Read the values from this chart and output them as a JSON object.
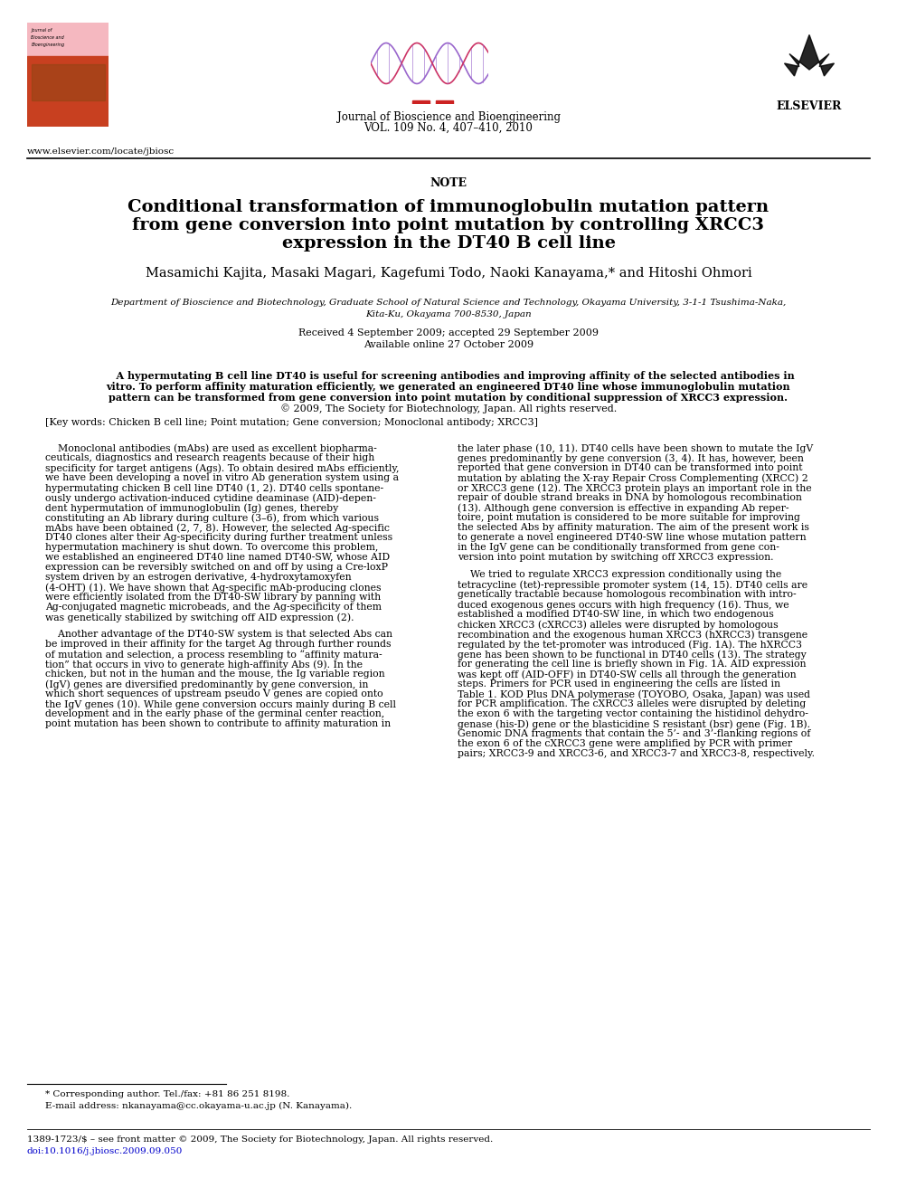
{
  "bg_color": "#ffffff",
  "journal_name": "Journal of Bioscience and Bioengineering",
  "journal_vol": "VOL. 109 No. 4, 407–410, 2010",
  "url": "www.elsevier.com/locate/jbiosc",
  "section_label": "NOTE",
  "title_line1": "Conditional transformation of immunoglobulin mutation pattern",
  "title_line2": "from gene conversion into point mutation by controlling XRCC3",
  "title_line3": "expression in the DT40 B cell line",
  "authors": "Masamichi Kajita, Masaki Magari, Kagefumi Todo, Naoki Kanayama,* and Hitoshi Ohmori",
  "affiliation_line1": "Department of Bioscience and Biotechnology, Graduate School of Natural Science and Technology, Okayama University, 3-1-1 Tsushima-Naka,",
  "affiliation_line2": "Kita-Ku, Okayama 700-8530, Japan",
  "received": "Received 4 September 2009; accepted 29 September 2009",
  "available": "Available online 27 October 2009",
  "abstract_bold": "    A hypermutating B cell line DT40 is useful for screening antibodies and improving affinity of the selected antibodies in\nvitro. To perform affinity maturation efficiently, we generated an engineered DT40 line whose immunoglobulin mutation\npattern can be transformed from gene conversion into point mutation by conditional suppression of XRCC3 expression.",
  "abstract_normal": "© 2009, The Society for Biotechnology, Japan. All rights reserved.",
  "keywords": "[Key words: Chicken B cell line; Point mutation; Gene conversion; Monoclonal antibody; XRCC3]",
  "col1_para1_lines": [
    "    Monoclonal antibodies (mAbs) are used as excellent biopharma-",
    "ceuticals, diagnostics and research reagents because of their high",
    "specificity for target antigens (Ags). To obtain desired mAbs efficiently,",
    "we have been developing a novel in vitro Ab generation system using a",
    "hypermutating chicken B cell line DT40 (1, 2). DT40 cells spontane-",
    "ously undergo activation-induced cytidine deaminase (AID)-depen-",
    "dent hypermutation of immunoglobulin (Ig) genes, thereby",
    "constituting an Ab library during culture (3–6), from which various",
    "mAbs have been obtained (2, 7, 8). However, the selected Ag-specific",
    "DT40 clones alter their Ag-specificity during further treatment unless",
    "hypermutation machinery is shut down. To overcome this problem,",
    "we established an engineered DT40 line named DT40-SW, whose AID",
    "expression can be reversibly switched on and off by using a Cre-loxP",
    "system driven by an estrogen derivative, 4-hydroxytamoxyfen",
    "(4-OHT) (1). We have shown that Ag-specific mAb-producing clones",
    "were efficiently isolated from the DT40-SW library by panning with",
    "Ag-conjugated magnetic microbeads, and the Ag-specificity of them",
    "was genetically stabilized by switching off AID expression (2)."
  ],
  "col1_para2_lines": [
    "    Another advantage of the DT40-SW system is that selected Abs can",
    "be improved in their affinity for the target Ag through further rounds",
    "of mutation and selection, a process resembling to “affinity matura-",
    "tion” that occurs in vivo to generate high-affinity Abs (9). In the",
    "chicken, but not in the human and the mouse, the Ig variable region",
    "(IgV) genes are diversified predominantly by gene conversion, in",
    "which short sequences of upstream pseudo V genes are copied onto",
    "the IgV genes (10). While gene conversion occurs mainly during B cell",
    "development and in the early phase of the germinal center reaction,",
    "point mutation has been shown to contribute to affinity maturation in"
  ],
  "col2_para1_lines": [
    "the later phase (10, 11). DT40 cells have been shown to mutate the IgV",
    "genes predominantly by gene conversion (3, 4). It has, however, been",
    "reported that gene conversion in DT40 can be transformed into point",
    "mutation by ablating the X-ray Repair Cross Complementing (XRCC) 2",
    "or XRCC3 gene (12). The XRCC3 protein plays an important role in the",
    "repair of double strand breaks in DNA by homologous recombination",
    "(13). Although gene conversion is effective in expanding Ab reper-",
    "toire, point mutation is considered to be more suitable for improving",
    "the selected Abs by affinity maturation. The aim of the present work is",
    "to generate a novel engineered DT40-SW line whose mutation pattern",
    "in the IgV gene can be conditionally transformed from gene con-",
    "version into point mutation by switching off XRCC3 expression."
  ],
  "col2_para2_lines": [
    "    We tried to regulate XRCC3 expression conditionally using the",
    "tetracycline (tet)-repressible promoter system (14, 15). DT40 cells are",
    "genetically tractable because homologous recombination with intro-",
    "duced exogenous genes occurs with high frequency (16). Thus, we",
    "established a modified DT40-SW line, in which two endogenous",
    "chicken XRCC3 (cXRCC3) alleles were disrupted by homologous",
    "recombination and the exogenous human XRCC3 (hXRCC3) transgene",
    "regulated by the tet-promoter was introduced (Fig. 1A). The hXRCC3",
    "gene has been shown to be functional in DT40 cells (13). The strategy",
    "for generating the cell line is briefly shown in Fig. 1A. AID expression",
    "was kept off (AID-OFF) in DT40-SW cells all through the generation",
    "steps. Primers for PCR used in engineering the cells are listed in",
    "Table 1. KOD Plus DNA polymerase (TOYOBO, Osaka, Japan) was used",
    "for PCR amplification. The cXRCC3 alleles were disrupted by deleting",
    "the exon 6 with the targeting vector containing the histidinol dehydro-",
    "genase (his-D) gene or the blasticidine S resistant (bsr) gene (Fig. 1B).",
    "Genomic DNA fragments that contain the 5’- and 3’-flanking regions of",
    "the exon 6 of the cXRCC3 gene were amplified by PCR with primer",
    "pairs; XRCC3-9 and XRCC3-6, and XRCC3-7 and XRCC3-8, respectively."
  ],
  "footnote1": "* Corresponding author. Tel./fax: +81 86 251 8198.",
  "footnote2": "E-mail address: nkanayama@cc.okayama-u.ac.jp (N. Kanayama).",
  "bottom_line1": "1389-1723/$ – see front matter © 2009, The Society for Biotechnology, Japan. All rights reserved.",
  "bottom_line2": "doi:10.1016/j.jbiosc.2009.09.050"
}
